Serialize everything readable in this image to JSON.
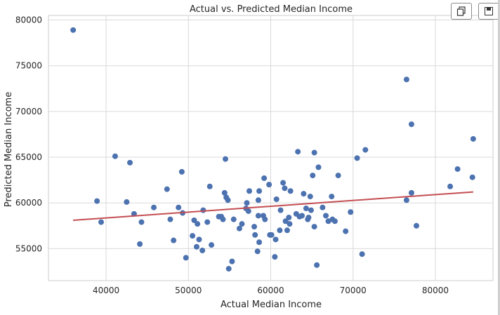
{
  "toolbar": {
    "copy_icon": "copy-icon",
    "save_icon": "floppy-disk-icon"
  },
  "chart_data": {
    "type": "scatter",
    "title": "Actual vs. Predicted Median Income",
    "xlabel": "Actual Median Income",
    "ylabel": "Predicted Median Income",
    "xlim": [
      33000,
      87000
    ],
    "ylim": [
      51500,
      80500
    ],
    "xticks": [
      40000,
      50000,
      60000,
      70000,
      80000
    ],
    "yticks": [
      55000,
      60000,
      65000,
      70000,
      75000,
      80000
    ],
    "grid": true,
    "point_color": "#4c72b0",
    "line_color": "#c44e52",
    "points": [
      [
        36000,
        78900
      ],
      [
        38900,
        60200
      ],
      [
        39400,
        57900
      ],
      [
        41100,
        65100
      ],
      [
        42500,
        60100
      ],
      [
        42900,
        64400
      ],
      [
        43400,
        58800
      ],
      [
        44100,
        55500
      ],
      [
        44300,
        57900
      ],
      [
        45800,
        59500
      ],
      [
        47400,
        61500
      ],
      [
        47800,
        58200
      ],
      [
        48200,
        55900
      ],
      [
        48800,
        59500
      ],
      [
        49200,
        63400
      ],
      [
        49300,
        58900
      ],
      [
        49700,
        54000
      ],
      [
        50500,
        56400
      ],
      [
        50700,
        58100
      ],
      [
        51000,
        55200
      ],
      [
        51100,
        57700
      ],
      [
        51300,
        56000
      ],
      [
        51700,
        54800
      ],
      [
        51800,
        59200
      ],
      [
        52300,
        57900
      ],
      [
        52600,
        61800
      ],
      [
        52800,
        55400
      ],
      [
        53700,
        58500
      ],
      [
        54000,
        58500
      ],
      [
        54200,
        58200
      ],
      [
        54400,
        61100
      ],
      [
        54500,
        64800
      ],
      [
        54600,
        60600
      ],
      [
        54800,
        60300
      ],
      [
        54900,
        52800
      ],
      [
        55300,
        53600
      ],
      [
        55500,
        58200
      ],
      [
        56200,
        57200
      ],
      [
        56500,
        57700
      ],
      [
        57000,
        59400
      ],
      [
        57100,
        60000
      ],
      [
        57300,
        59100
      ],
      [
        57400,
        61300
      ],
      [
        58000,
        57400
      ],
      [
        58100,
        56500
      ],
      [
        58400,
        54700
      ],
      [
        58500,
        60300
      ],
      [
        58500,
        58600
      ],
      [
        58600,
        55700
      ],
      [
        58600,
        61300
      ],
      [
        59200,
        62700
      ],
      [
        59100,
        58600
      ],
      [
        59300,
        58200
      ],
      [
        59800,
        62000
      ],
      [
        59900,
        56500
      ],
      [
        60100,
        56500
      ],
      [
        60500,
        54100
      ],
      [
        60600,
        56000
      ],
      [
        60700,
        60400
      ],
      [
        61100,
        57000
      ],
      [
        61200,
        59200
      ],
      [
        61500,
        62200
      ],
      [
        61700,
        61600
      ],
      [
        61800,
        58000
      ],
      [
        62000,
        57000
      ],
      [
        62200,
        58400
      ],
      [
        62300,
        57700
      ],
      [
        62400,
        61300
      ],
      [
        63100,
        58800
      ],
      [
        63300,
        65600
      ],
      [
        63500,
        58500
      ],
      [
        63800,
        58600
      ],
      [
        64000,
        61000
      ],
      [
        64300,
        59400
      ],
      [
        64500,
        58200
      ],
      [
        64600,
        58400
      ],
      [
        64800,
        60700
      ],
      [
        64900,
        59200
      ],
      [
        65100,
        63000
      ],
      [
        65300,
        65500
      ],
      [
        65300,
        57400
      ],
      [
        65800,
        63900
      ],
      [
        65600,
        53200
      ],
      [
        66300,
        59500
      ],
      [
        66700,
        58600
      ],
      [
        67000,
        58000
      ],
      [
        67400,
        60700
      ],
      [
        67500,
        58200
      ],
      [
        67800,
        58000
      ],
      [
        68200,
        63000
      ],
      [
        69100,
        56900
      ],
      [
        69700,
        59000
      ],
      [
        70500,
        64900
      ],
      [
        71100,
        54400
      ],
      [
        71500,
        65800
      ],
      [
        76500,
        60300
      ],
      [
        76500,
        73500
      ],
      [
        77100,
        68600
      ],
      [
        77100,
        61100
      ],
      [
        77700,
        57500
      ],
      [
        81800,
        61800
      ],
      [
        82700,
        63700
      ],
      [
        84500,
        62800
      ],
      [
        84600,
        67000
      ]
    ],
    "fit_line": {
      "x": [
        36000,
        84600
      ],
      "y": [
        58100,
        61200
      ]
    }
  }
}
